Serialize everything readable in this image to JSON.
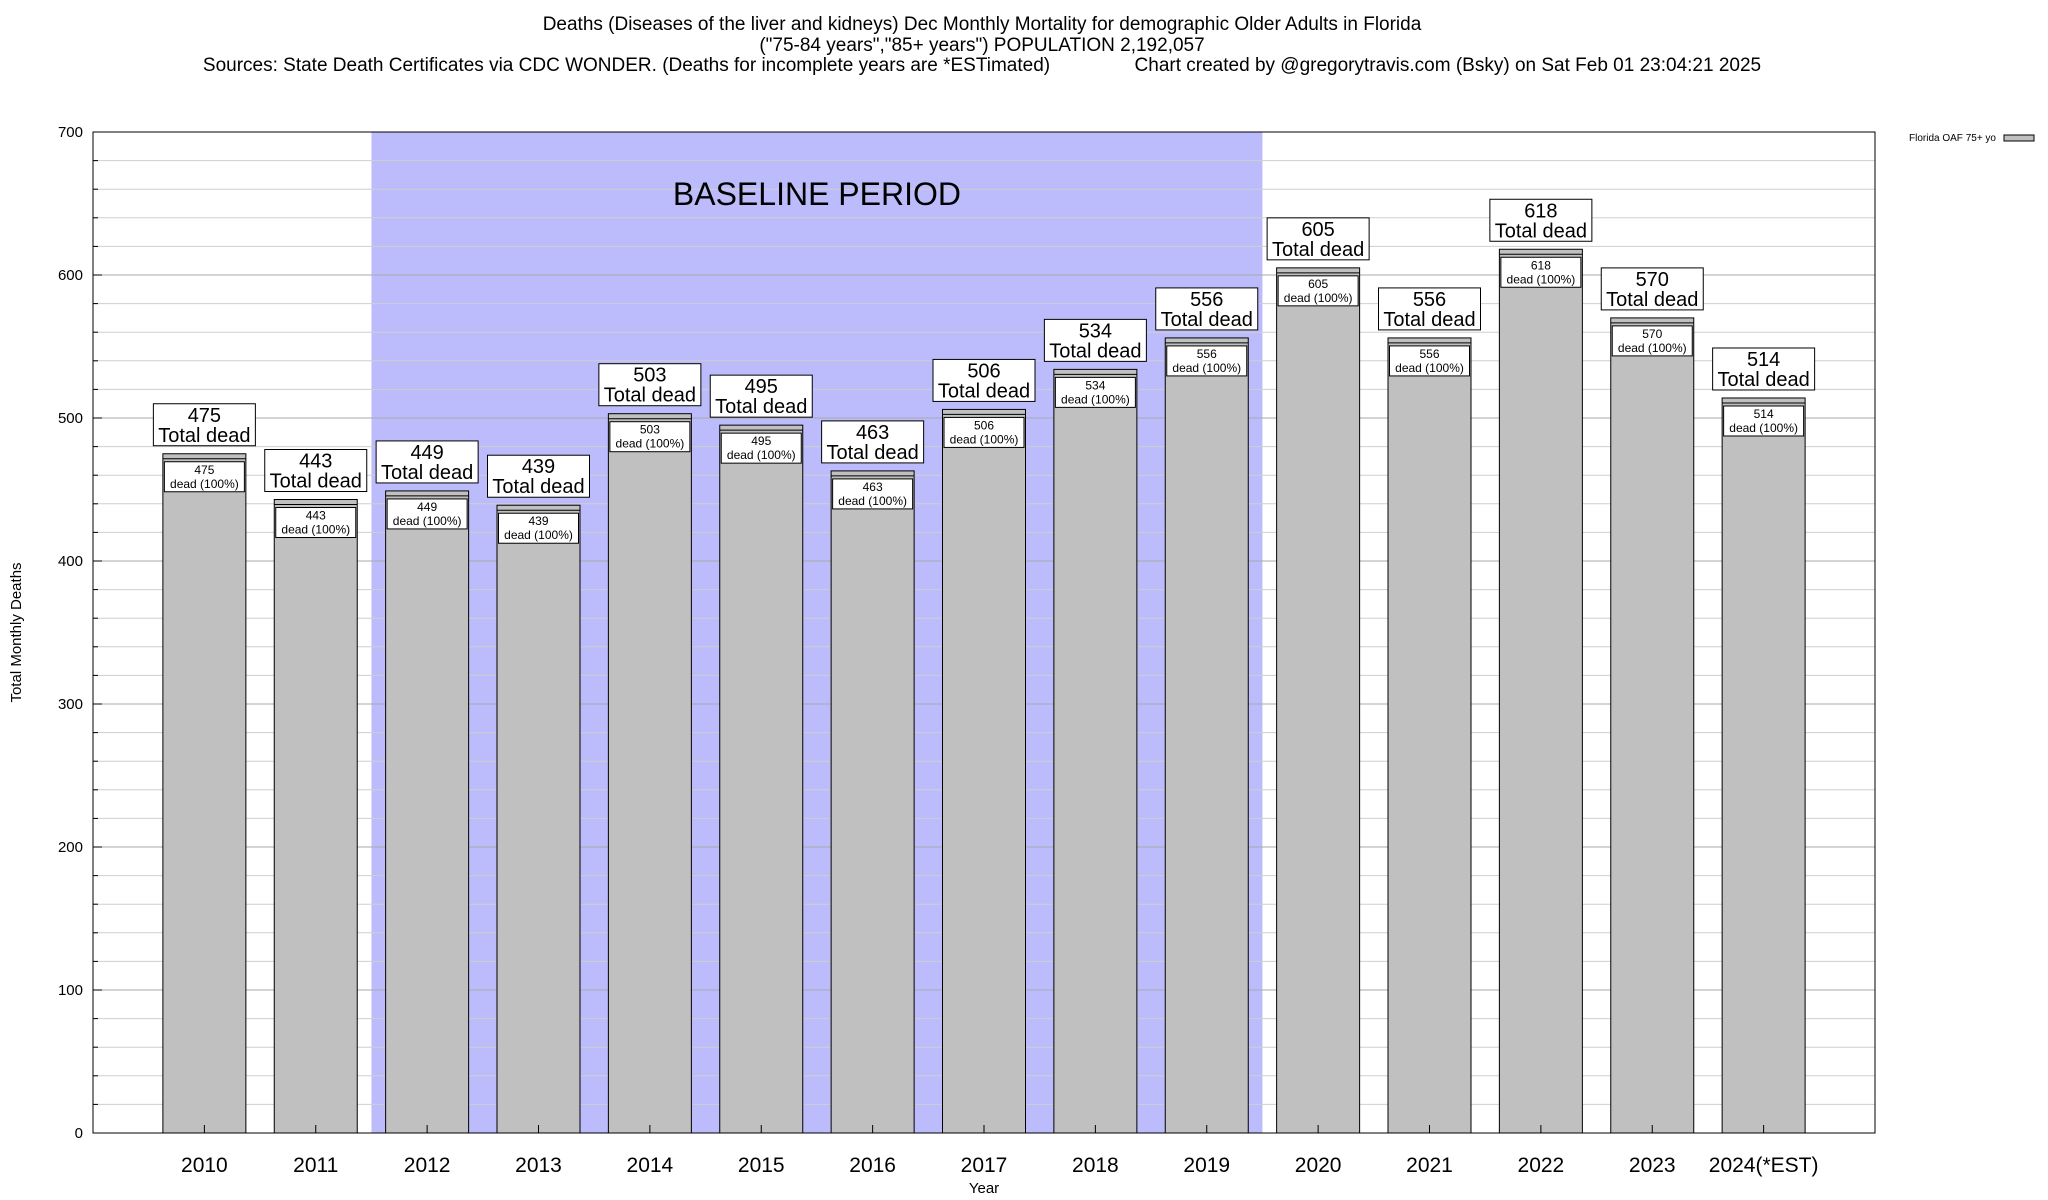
{
  "chart_data": {
    "type": "bar",
    "title_lines": [
      "Deaths (Diseases of the liver and kidneys) Dec Monthly Mortality for demographic Older Adults in Florida",
      "(\"75-84 years\",\"85+ years\") POPULATION 2,192,057",
      "Sources: State Death Certificates via CDC WONDER. (Deaths for incomplete years are *ESTimated)                Chart created by @gregorytravis.com (Bsky) on Sat Feb 01 23:04:21 2025"
    ],
    "xlabel": "Year",
    "ylabel": "Total Monthly Deaths",
    "ylim": [
      0,
      700
    ],
    "y_ticks": [
      0,
      100,
      200,
      300,
      400,
      500,
      600,
      700
    ],
    "y_minor_step": 20,
    "grid": true,
    "categories": [
      "2010",
      "2011",
      "2012",
      "2013",
      "2014",
      "2015",
      "2016",
      "2017",
      "2018",
      "2019",
      "2020",
      "2021",
      "2022",
      "2023",
      "2024(*EST)"
    ],
    "series": [
      {
        "name": "Florida OAF 75+ yo",
        "color": "#c0c0c0",
        "values": [
          475,
          443,
          449,
          439,
          503,
          495,
          463,
          506,
          534,
          556,
          605,
          556,
          618,
          570,
          514
        ]
      }
    ],
    "total_label_suffix": "Total dead",
    "inner_label_suffix": "dead (100%)",
    "baseline_band": {
      "label": "BASELINE PERIOD",
      "from": "2012",
      "to": "2019",
      "color": "#bcbcfc"
    },
    "legend": {
      "position": "top-right",
      "entries": [
        "Florida OAF 75+ yo"
      ]
    }
  }
}
